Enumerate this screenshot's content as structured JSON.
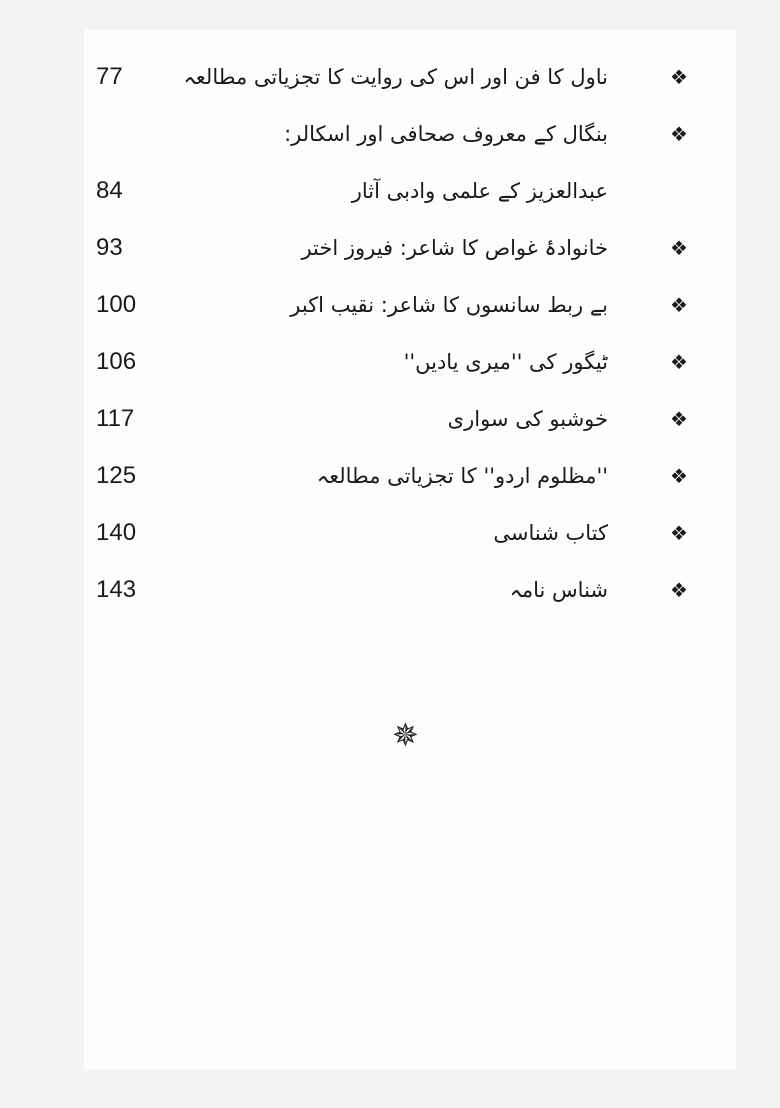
{
  "toc": [
    {
      "title": "ناول کا فن اور اس کی روایت کا تجزیاتی مطالعہ",
      "page": "77",
      "bullet": true
    },
    {
      "title": "بنگال کے معروف صحافی اور اسکالر:",
      "page": "",
      "bullet": true
    },
    {
      "title": "عبدالعزیز کے علمی وادبی آثار",
      "page": "84",
      "bullet": false
    },
    {
      "title": "خانوادۂ غواص کا شاعر: فیروز اختر",
      "page": "93",
      "bullet": true
    },
    {
      "title": "بے ربط سانسوں کا شاعر: نقیب اکبر",
      "page": "100",
      "bullet": true
    },
    {
      "title": "ٹیگور کی ''میری یادیں''",
      "page": "106",
      "bullet": true
    },
    {
      "title": "خوشبو کی سواری",
      "page": "117",
      "bullet": true
    },
    {
      "title": "''مظلوم اردو'' کا تجزیاتی مطالعہ",
      "page": "125",
      "bullet": true
    },
    {
      "title": "کتاب شناسی",
      "page": "140",
      "bullet": true
    },
    {
      "title": "شناس نامہ",
      "page": "143",
      "bullet": true
    }
  ],
  "bullet_icon": "four-diamond-bullet-icon",
  "ornament_icon": "star-ornament-icon"
}
